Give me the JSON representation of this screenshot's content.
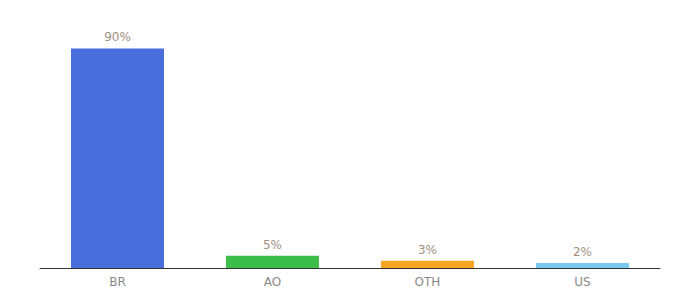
{
  "chart_data": {
    "type": "bar",
    "categories": [
      "BR",
      "AO",
      "OTH",
      "US"
    ],
    "values": [
      90,
      5,
      3,
      2
    ],
    "value_labels": [
      "90%",
      "5%",
      "3%",
      "2%"
    ],
    "colors": [
      "#4A6EDB",
      "#3DBE4A",
      "#F5A623",
      "#7BC8F0"
    ],
    "ylim": [
      0,
      100
    ],
    "grid": false,
    "data_labels": true,
    "tick_labels": "x"
  }
}
